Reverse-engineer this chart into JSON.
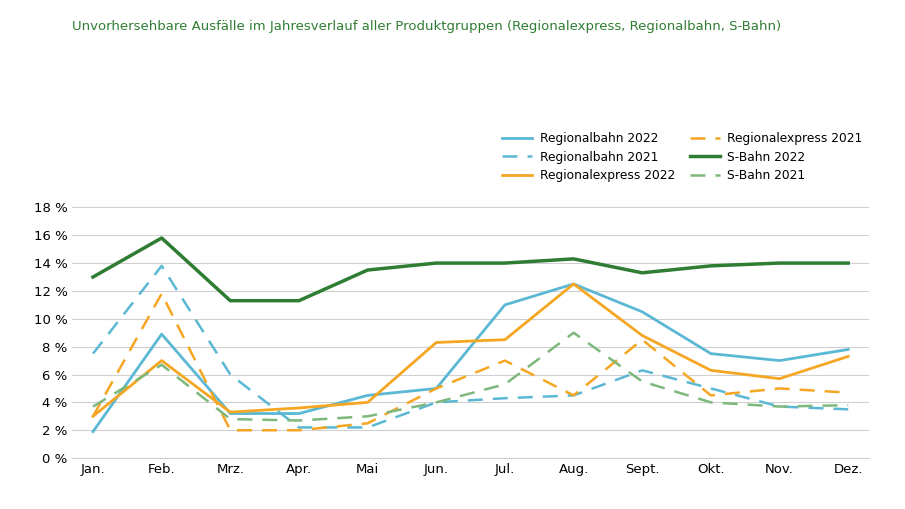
{
  "title": "Unvorhersehbare Ausfälle im Jahresverlauf aller Produktgruppen (Regionalexpress, Regionalbahn, S-Bahn)",
  "months": [
    "Jan.",
    "Feb.",
    "Mrz.",
    "Apr.",
    "Mai",
    "Jun.",
    "Jul.",
    "Aug.",
    "Sept.",
    "Okt.",
    "Nov.",
    "Dez."
  ],
  "series": {
    "Regionalbahn 2022": {
      "values": [
        0.019,
        0.089,
        0.032,
        0.032,
        0.045,
        0.05,
        0.11,
        0.125,
        0.105,
        0.075,
        0.07,
        0.078
      ],
      "color": "#5BB8D4",
      "linestyle": "solid",
      "linewidth": 2.0
    },
    "Regionalexpress 2022": {
      "values": [
        0.03,
        0.07,
        0.033,
        0.036,
        0.04,
        0.083,
        0.085,
        0.125,
        0.088,
        0.063,
        0.057,
        0.073
      ],
      "color": "#F5A623",
      "linestyle": "solid",
      "linewidth": 2.0
    },
    "S-Bahn 2022": {
      "values": [
        0.13,
        0.158,
        0.113,
        0.113,
        0.135,
        0.14,
        0.14,
        0.143,
        0.133,
        0.138,
        0.14,
        0.14
      ],
      "color": "#2E7D32",
      "linestyle": "solid",
      "linewidth": 2.5
    },
    "Regionalbahn 2021": {
      "values": [
        0.075,
        0.138,
        0.06,
        0.022,
        0.022,
        0.04,
        0.043,
        0.045,
        0.063,
        0.05,
        0.037,
        0.035
      ],
      "color": "#5BB8D4",
      "linestyle": "dashed",
      "linewidth": 1.8
    },
    "Regionalexpress 2021": {
      "values": [
        0.03,
        0.118,
        0.02,
        0.02,
        0.025,
        0.05,
        0.07,
        0.045,
        0.085,
        0.045,
        0.05,
        0.047
      ],
      "color": "#F5A623",
      "linestyle": "dashed",
      "linewidth": 1.8
    },
    "S-Bahn 2021": {
      "values": [
        0.037,
        0.067,
        0.028,
        0.027,
        0.03,
        0.04,
        0.053,
        0.09,
        0.055,
        0.04,
        0.037,
        0.038
      ],
      "color": "#7DB87D",
      "linestyle": "dashed",
      "linewidth": 1.8
    }
  },
  "legend_order": [
    "Regionalbahn 2022",
    "Regionalbahn 2021",
    "Regionalexpress 2022",
    "Regionalexpress 2021",
    "S-Bahn 2022",
    "S-Bahn 2021"
  ],
  "ylim": [
    0,
    0.19
  ],
  "yticks": [
    0,
    0.02,
    0.04,
    0.06,
    0.08,
    0.1,
    0.12,
    0.14,
    0.16,
    0.18
  ],
  "title_color": "#2E7D32",
  "title_fontsize": 9.5,
  "background_color": "#ffffff",
  "grid_color": "#d0d0d0"
}
